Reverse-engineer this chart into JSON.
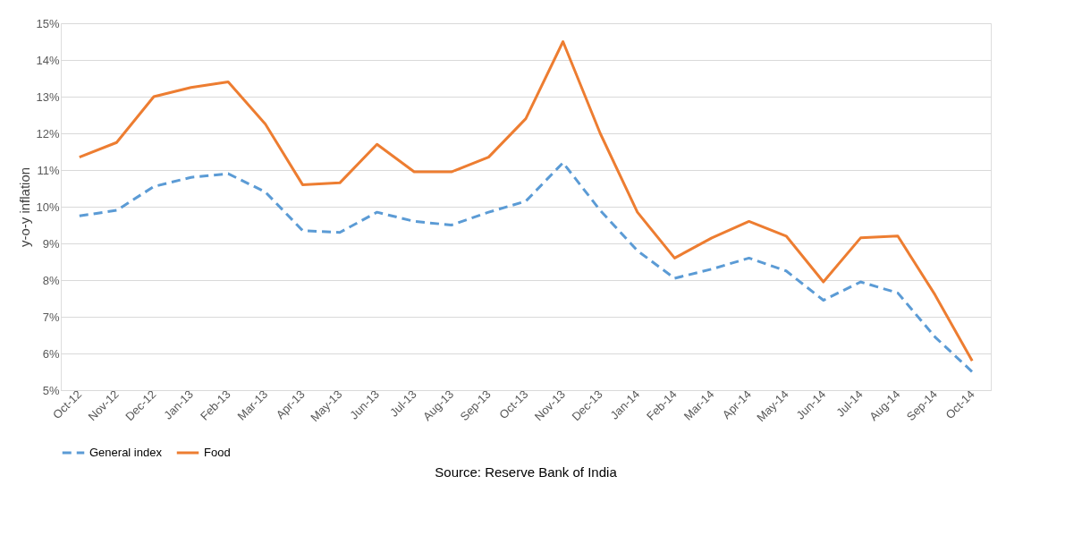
{
  "chart_data": {
    "type": "line",
    "ylabel": "y-o-y inflation",
    "categories": [
      "Oct-12",
      "Nov-12",
      "Dec-12",
      "Jan-13",
      "Feb-13",
      "Mar-13",
      "Apr-13",
      "May-13",
      "Jun-13",
      "Jul-13",
      "Aug-13",
      "Sep-13",
      "Oct-13",
      "Nov-13",
      "Dec-13",
      "Jan-14",
      "Feb-14",
      "Mar-14",
      "Apr-14",
      "May-14",
      "Jun-14",
      "Jul-14",
      "Aug-14",
      "Sep-14",
      "Oct-14"
    ],
    "series": [
      {
        "name": "General index",
        "color": "#5b9bd5",
        "line_style": "dashed",
        "values": [
          9.75,
          9.9,
          10.55,
          10.8,
          10.9,
          10.4,
          9.35,
          9.3,
          9.85,
          9.6,
          9.5,
          9.85,
          10.15,
          11.2,
          9.9,
          8.8,
          8.05,
          8.3,
          8.6,
          8.25,
          7.45,
          7.95,
          7.65,
          6.45,
          5.5
        ]
      },
      {
        "name": "Food",
        "color": "#ed7d31",
        "line_style": "solid",
        "values": [
          11.35,
          11.75,
          13.0,
          13.25,
          13.4,
          12.25,
          10.6,
          10.65,
          11.7,
          10.95,
          10.95,
          11.35,
          12.4,
          14.5,
          12.0,
          9.85,
          8.6,
          9.15,
          9.6,
          9.2,
          7.95,
          9.15,
          9.2,
          7.6,
          5.8
        ]
      }
    ],
    "ylim": [
      5,
      15
    ],
    "yticks": [
      {
        "value": 5,
        "label": "5%"
      },
      {
        "value": 6,
        "label": "6%"
      },
      {
        "value": 7,
        "label": "7%"
      },
      {
        "value": 8,
        "label": "8%"
      },
      {
        "value": 9,
        "label": "9%"
      },
      {
        "value": 10,
        "label": "10%"
      },
      {
        "value": 11,
        "label": "11%"
      },
      {
        "value": 12,
        "label": "12%"
      },
      {
        "value": 13,
        "label": "13%"
      },
      {
        "value": 14,
        "label": "14%"
      },
      {
        "value": 15,
        "label": "15%"
      }
    ],
    "grid": "y",
    "legend": "bottom",
    "marker": "none",
    "annotations": [
      "Source: Reserve Bank of India"
    ]
  }
}
